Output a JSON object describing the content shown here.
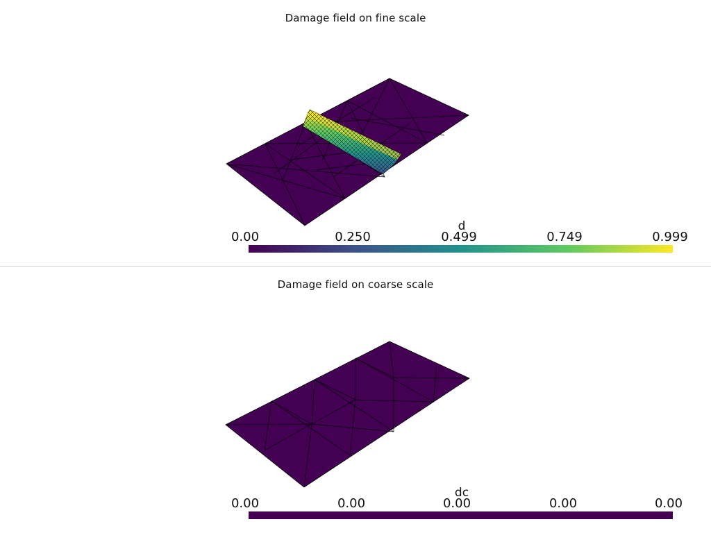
{
  "top_panel": {
    "title": "Damage field on fine scale",
    "colorbar": {
      "name": "d",
      "ticks": [
        "0.00",
        "0.250",
        "0.499",
        "0.749",
        "0.999"
      ],
      "colormap": [
        "#440154",
        "#3b528b",
        "#21918c",
        "#5ec962",
        "#fde725"
      ]
    }
  },
  "bottom_panel": {
    "title": "Damage field on coarse scale",
    "colorbar": {
      "name": "dc",
      "ticks": [
        "0.00",
        "0.00",
        "0.00",
        "0.00",
        "0.00"
      ],
      "color": "#440154"
    }
  },
  "colors": {
    "field_min": "#440154",
    "field_max": "#fde725",
    "mesh_edges": "#000000"
  }
}
